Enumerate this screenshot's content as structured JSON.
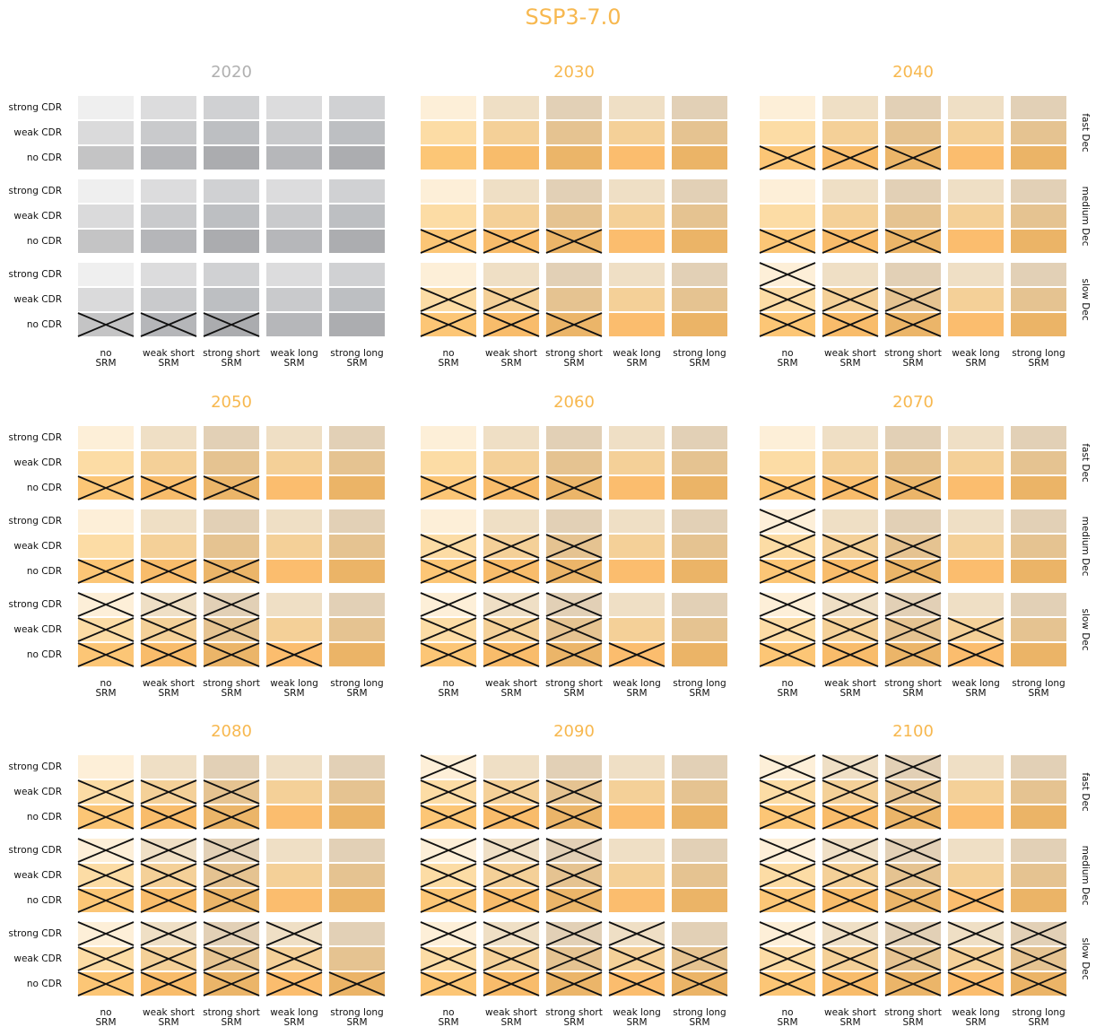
{
  "chart_data": {
    "type": "cross-grid",
    "title": "SSP3-7.0",
    "title_color": "#f7b84f",
    "row_labels": [
      "strong CDR",
      "weak CDR",
      "no CDR"
    ],
    "group_labels": [
      "fast Dec",
      "medium Dec",
      "slow Dec"
    ],
    "column_labels": [
      [
        "no",
        "SRM"
      ],
      [
        "weak short",
        "SRM"
      ],
      [
        "strong short",
        "SRM"
      ],
      [
        "weak long",
        "SRM"
      ],
      [
        "strong long",
        "SRM"
      ]
    ],
    "cross_color": "#111111",
    "palettes": {
      "gray": {
        "title_color": "#b0b0b0",
        "cells": [
          [
            "#efefef",
            "#dcdcdd",
            "#d0d1d3",
            "#dcdcdd",
            "#d0d1d3"
          ],
          [
            "#dadadb",
            "#c9cacc",
            "#bdbfc2",
            "#c9cacc",
            "#bdbfc2"
          ],
          [
            "#c4c4c5",
            "#b5b6b9",
            "#abacaf",
            "#b6b7ba",
            "#acadb0"
          ]
        ]
      },
      "orange": {
        "title_color": "#f7b84f",
        "cells": [
          [
            "#fdefd8",
            "#efdfc5",
            "#e2d0b6",
            "#efdfc5",
            "#e2d0b6"
          ],
          [
            "#fcdca5",
            "#f4d098",
            "#e5c391",
            "#f4d098",
            "#e5c391"
          ],
          [
            "#fcc676",
            "#f8bc6b",
            "#ebb569",
            "#fbbd6e",
            "#ebb467"
          ]
        ]
      }
    },
    "panels": [
      {
        "year": "2020",
        "palette": "gray",
        "crossed": [
          [
            [
              0,
              0,
              0,
              0,
              0
            ],
            [
              0,
              0,
              0,
              0,
              0
            ],
            [
              0,
              0,
              0,
              0,
              0
            ]
          ],
          [
            [
              0,
              0,
              0,
              0,
              0
            ],
            [
              0,
              0,
              0,
              0,
              0
            ],
            [
              0,
              0,
              0,
              0,
              0
            ]
          ],
          [
            [
              0,
              0,
              0,
              0,
              0
            ],
            [
              0,
              0,
              0,
              0,
              0
            ],
            [
              1,
              1,
              1,
              0,
              0
            ]
          ]
        ]
      },
      {
        "year": "2030",
        "palette": "orange",
        "crossed": [
          [
            [
              0,
              0,
              0,
              0,
              0
            ],
            [
              0,
              0,
              0,
              0,
              0
            ],
            [
              0,
              0,
              0,
              0,
              0
            ]
          ],
          [
            [
              0,
              0,
              0,
              0,
              0
            ],
            [
              0,
              0,
              0,
              0,
              0
            ],
            [
              1,
              1,
              1,
              0,
              0
            ]
          ],
          [
            [
              0,
              0,
              0,
              0,
              0
            ],
            [
              1,
              1,
              0,
              0,
              0
            ],
            [
              1,
              1,
              1,
              0,
              0
            ]
          ]
        ]
      },
      {
        "year": "2040",
        "palette": "orange",
        "crossed": [
          [
            [
              0,
              0,
              0,
              0,
              0
            ],
            [
              0,
              0,
              0,
              0,
              0
            ],
            [
              1,
              1,
              1,
              0,
              0
            ]
          ],
          [
            [
              0,
              0,
              0,
              0,
              0
            ],
            [
              0,
              0,
              0,
              0,
              0
            ],
            [
              1,
              1,
              1,
              0,
              0
            ]
          ],
          [
            [
              1,
              0,
              0,
              0,
              0
            ],
            [
              1,
              1,
              1,
              0,
              0
            ],
            [
              1,
              1,
              1,
              0,
              0
            ]
          ]
        ]
      },
      {
        "year": "2050",
        "palette": "orange",
        "crossed": [
          [
            [
              0,
              0,
              0,
              0,
              0
            ],
            [
              0,
              0,
              0,
              0,
              0
            ],
            [
              1,
              1,
              1,
              0,
              0
            ]
          ],
          [
            [
              0,
              0,
              0,
              0,
              0
            ],
            [
              0,
              0,
              0,
              0,
              0
            ],
            [
              1,
              1,
              1,
              0,
              0
            ]
          ],
          [
            [
              1,
              1,
              1,
              0,
              0
            ],
            [
              1,
              1,
              1,
              0,
              0
            ],
            [
              1,
              1,
              1,
              1,
              0
            ]
          ]
        ]
      },
      {
        "year": "2060",
        "palette": "orange",
        "crossed": [
          [
            [
              0,
              0,
              0,
              0,
              0
            ],
            [
              0,
              0,
              0,
              0,
              0
            ],
            [
              1,
              1,
              1,
              0,
              0
            ]
          ],
          [
            [
              0,
              0,
              0,
              0,
              0
            ],
            [
              1,
              1,
              1,
              0,
              0
            ],
            [
              1,
              1,
              1,
              0,
              0
            ]
          ],
          [
            [
              1,
              1,
              1,
              0,
              0
            ],
            [
              1,
              1,
              1,
              0,
              0
            ],
            [
              1,
              1,
              1,
              1,
              0
            ]
          ]
        ]
      },
      {
        "year": "2070",
        "palette": "orange",
        "crossed": [
          [
            [
              0,
              0,
              0,
              0,
              0
            ],
            [
              0,
              0,
              0,
              0,
              0
            ],
            [
              1,
              1,
              1,
              0,
              0
            ]
          ],
          [
            [
              1,
              0,
              0,
              0,
              0
            ],
            [
              1,
              1,
              1,
              0,
              0
            ],
            [
              1,
              1,
              1,
              0,
              0
            ]
          ],
          [
            [
              1,
              1,
              1,
              0,
              0
            ],
            [
              1,
              1,
              1,
              1,
              0
            ],
            [
              1,
              1,
              1,
              1,
              0
            ]
          ]
        ]
      },
      {
        "year": "2080",
        "palette": "orange",
        "crossed": [
          [
            [
              0,
              0,
              0,
              0,
              0
            ],
            [
              1,
              1,
              1,
              0,
              0
            ],
            [
              1,
              1,
              1,
              0,
              0
            ]
          ],
          [
            [
              1,
              1,
              1,
              0,
              0
            ],
            [
              1,
              1,
              1,
              0,
              0
            ],
            [
              1,
              1,
              1,
              0,
              0
            ]
          ],
          [
            [
              1,
              1,
              1,
              1,
              0
            ],
            [
              1,
              1,
              1,
              1,
              0
            ],
            [
              1,
              1,
              1,
              1,
              1
            ]
          ]
        ]
      },
      {
        "year": "2090",
        "palette": "orange",
        "crossed": [
          [
            [
              1,
              0,
              0,
              0,
              0
            ],
            [
              1,
              1,
              1,
              0,
              0
            ],
            [
              1,
              1,
              1,
              0,
              0
            ]
          ],
          [
            [
              1,
              1,
              1,
              0,
              0
            ],
            [
              1,
              1,
              1,
              0,
              0
            ],
            [
              1,
              1,
              1,
              0,
              0
            ]
          ],
          [
            [
              1,
              1,
              1,
              1,
              0
            ],
            [
              1,
              1,
              1,
              1,
              1
            ],
            [
              1,
              1,
              1,
              1,
              1
            ]
          ]
        ]
      },
      {
        "year": "2100",
        "palette": "orange",
        "crossed": [
          [
            [
              1,
              1,
              1,
              0,
              0
            ],
            [
              1,
              1,
              1,
              0,
              0
            ],
            [
              1,
              1,
              1,
              0,
              0
            ]
          ],
          [
            [
              1,
              1,
              1,
              0,
              0
            ],
            [
              1,
              1,
              1,
              0,
              0
            ],
            [
              1,
              1,
              1,
              1,
              0
            ]
          ],
          [
            [
              1,
              1,
              1,
              1,
              1
            ],
            [
              1,
              1,
              1,
              1,
              1
            ],
            [
              1,
              1,
              1,
              1,
              1
            ]
          ]
        ]
      }
    ]
  }
}
